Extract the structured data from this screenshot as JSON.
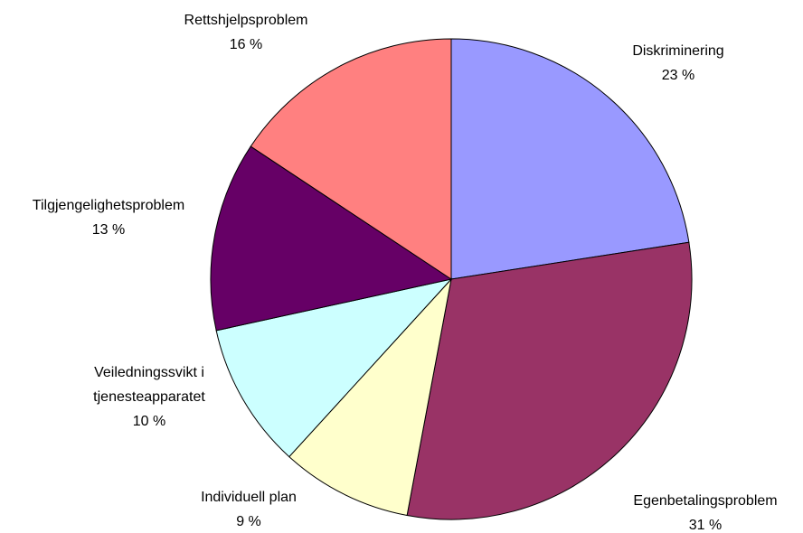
{
  "chart_data": {
    "type": "pie",
    "categories": [
      "Diskriminering",
      "Egenbetalingsproblem",
      "Individuell plan",
      "Veiledningssvikt i\ntjenesteapparatet",
      "Tilgjengelighetsproblem",
      "Rettshjelpsproblem"
    ],
    "values": [
      23,
      31,
      9,
      10,
      13,
      16
    ],
    "value_labels": [
      "23 %",
      "31 %",
      "9 %",
      "10 %",
      "13 %",
      "16 %"
    ],
    "colors": [
      "#9999ff",
      "#993366",
      "#ffffcc",
      "#ccffff",
      "#660066",
      "#ff8080"
    ]
  }
}
